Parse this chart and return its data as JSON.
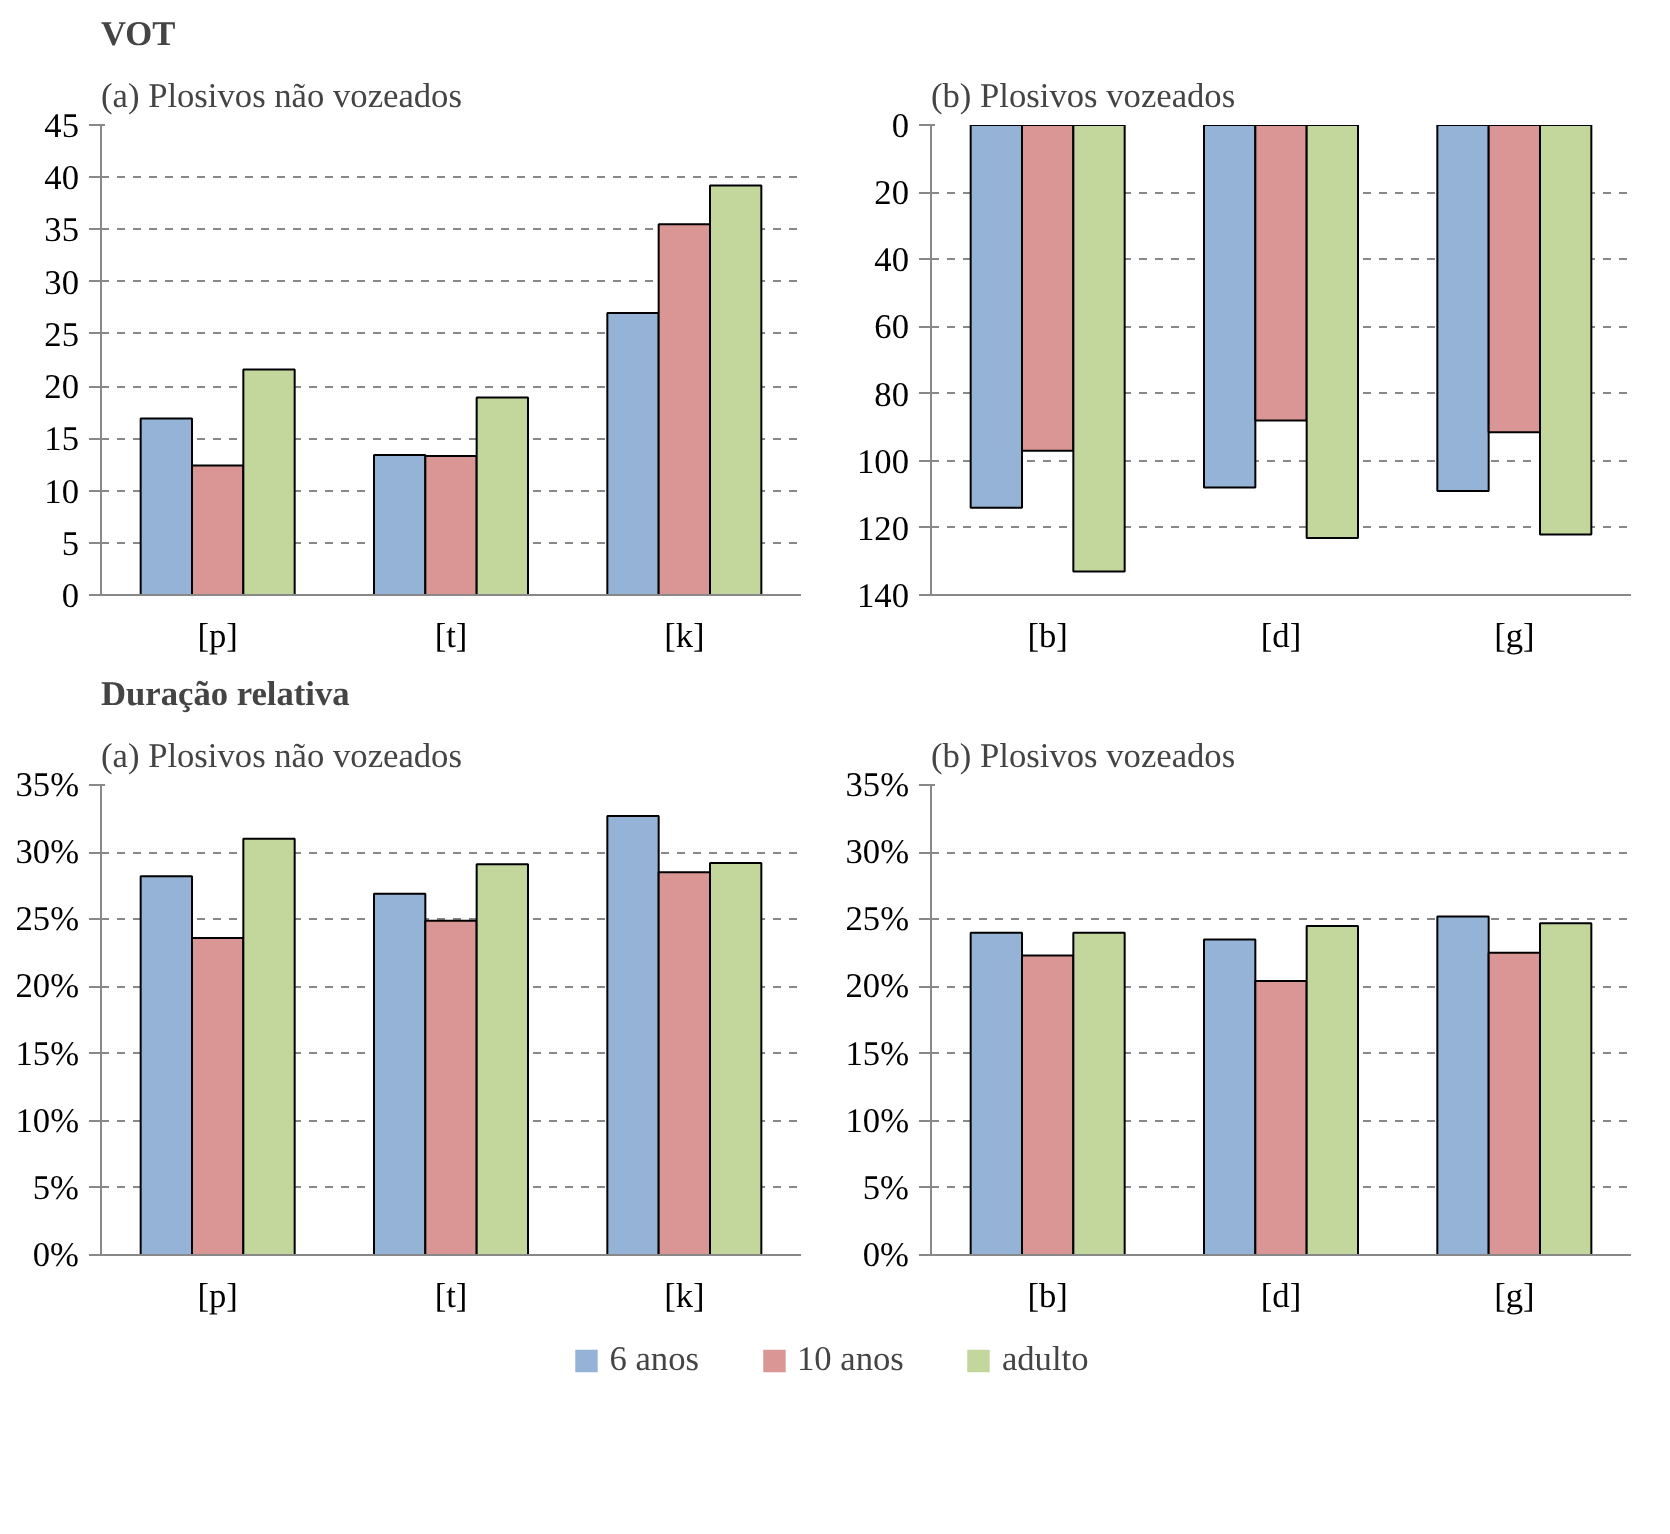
{
  "chart_data": [
    {
      "type": "bar",
      "title": "VOT",
      "subtitle": "(a) Plosivos não vozeados",
      "categories": [
        "[p]",
        "[t]",
        "[k]"
      ],
      "ylim": [
        0,
        45
      ],
      "yticks": [
        0,
        5,
        10,
        15,
        20,
        25,
        30,
        35,
        40,
        45
      ],
      "grid": "y",
      "legend": "bottom",
      "series": [
        {
          "name": "6 anos",
          "color": "#95b3d7",
          "values": [
            16.9,
            13.4,
            27.0
          ]
        },
        {
          "name": "10 anos",
          "color": "#d99694",
          "values": [
            12.4,
            13.3,
            35.5
          ]
        },
        {
          "name": "adulto",
          "color": "#c3d69b",
          "values": [
            21.6,
            18.9,
            39.2
          ]
        }
      ]
    },
    {
      "type": "bar",
      "subtitle": "(b) Plosivos vozeados",
      "categories": [
        "[b]",
        "[d]",
        "[g]"
      ],
      "ylim": [
        140,
        0
      ],
      "yticks": [
        0,
        20,
        40,
        60,
        80,
        100,
        120,
        140
      ],
      "grid": "y",
      "series": [
        {
          "color": "#95b3d7",
          "values": [
            114,
            108,
            109
          ]
        },
        {
          "color": "#d99694",
          "values": [
            97,
            88,
            91.5
          ]
        },
        {
          "color": "#c3d69b",
          "values": [
            133,
            123,
            122
          ]
        }
      ]
    },
    {
      "type": "bar",
      "title": "Duração relativa",
      "subtitle": "(a) Plosivos não vozeados",
      "categories": [
        "[p]",
        "[t]",
        "[k]"
      ],
      "ylim": [
        0,
        35
      ],
      "yticks": [
        {
          "value": 0,
          "label": "0%"
        },
        {
          "value": 5,
          "label": "5%"
        },
        {
          "value": 10,
          "label": "10%"
        },
        {
          "value": 15,
          "label": "15%"
        },
        {
          "value": 20,
          "label": "20%"
        },
        {
          "value": 25,
          "label": "25%"
        },
        {
          "value": 30,
          "label": "30%"
        },
        {
          "value": 35,
          "label": "35%"
        }
      ],
      "grid": "y",
      "series": [
        {
          "color": "#95b3d7",
          "values": [
            28.2,
            26.9,
            32.7
          ]
        },
        {
          "color": "#d99694",
          "values": [
            23.6,
            24.9,
            28.5
          ]
        },
        {
          "color": "#c3d69b",
          "values": [
            31.0,
            29.1,
            29.2
          ]
        }
      ]
    },
    {
      "type": "bar",
      "subtitle": "(b) Plosivos vozeados",
      "categories": [
        "[b]",
        "[d]",
        "[g]"
      ],
      "ylim": [
        0,
        35
      ],
      "yticks": [
        {
          "value": 0,
          "label": "0%"
        },
        {
          "value": 5,
          "label": "5%"
        },
        {
          "value": 10,
          "label": "10%"
        },
        {
          "value": 15,
          "label": "15%"
        },
        {
          "value": 20,
          "label": "20%"
        },
        {
          "value": 25,
          "label": "25%"
        },
        {
          "value": 30,
          "label": "30%"
        },
        {
          "value": 35,
          "label": "35%"
        }
      ],
      "grid": "y",
      "series": [
        {
          "color": "#95b3d7",
          "values": [
            24.0,
            23.5,
            25.2
          ]
        },
        {
          "color": "#d99694",
          "values": [
            22.3,
            20.4,
            22.5
          ]
        },
        {
          "color": "#c3d69b",
          "values": [
            24.0,
            24.5,
            24.7
          ]
        }
      ]
    }
  ]
}
